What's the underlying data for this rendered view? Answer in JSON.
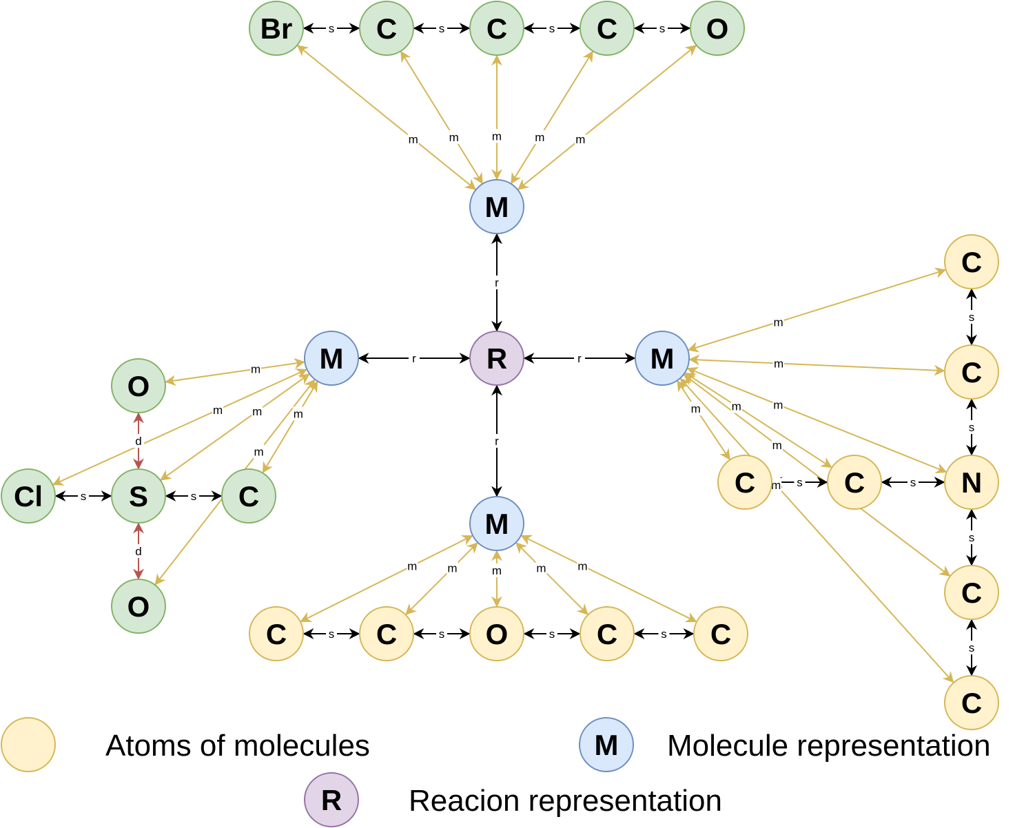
{
  "colors": {
    "atom_a": {
      "fill": "#d5e8d4",
      "stroke": "#82b366"
    },
    "atom_b": {
      "fill": "#fff2cc",
      "stroke": "#d6b656"
    },
    "molecule": {
      "fill": "#dae8fc",
      "stroke": "#6c8ebf"
    },
    "reaction": {
      "fill": "#e1d5e7",
      "stroke": "#9673a6"
    },
    "edge_s": "#000000",
    "edge_r": "#000000",
    "edge_m": "#d6b656",
    "edge_d": "#b85450"
  },
  "nodes": [
    {
      "id": "top_br",
      "label": "Br",
      "kind": "atom_a"
    },
    {
      "id": "top_c1",
      "label": "C",
      "kind": "atom_a"
    },
    {
      "id": "top_c2",
      "label": "C",
      "kind": "atom_a"
    },
    {
      "id": "top_c3",
      "label": "C",
      "kind": "atom_a"
    },
    {
      "id": "top_o",
      "label": "O",
      "kind": "atom_a"
    },
    {
      "id": "m_top",
      "label": "M",
      "kind": "molecule"
    },
    {
      "id": "m_left",
      "label": "M",
      "kind": "molecule"
    },
    {
      "id": "r_center",
      "label": "R",
      "kind": "reaction"
    },
    {
      "id": "m_right",
      "label": "M",
      "kind": "molecule"
    },
    {
      "id": "m_bottom",
      "label": "M",
      "kind": "molecule"
    },
    {
      "id": "l_o_top",
      "label": "O",
      "kind": "atom_a"
    },
    {
      "id": "l_cl",
      "label": "Cl",
      "kind": "atom_a"
    },
    {
      "id": "l_s",
      "label": "S",
      "kind": "atom_a"
    },
    {
      "id": "l_c",
      "label": "C",
      "kind": "atom_a"
    },
    {
      "id": "l_o_bot",
      "label": "O",
      "kind": "atom_a"
    },
    {
      "id": "b_c1",
      "label": "C",
      "kind": "atom_b"
    },
    {
      "id": "b_c2",
      "label": "C",
      "kind": "atom_b"
    },
    {
      "id": "b_o",
      "label": "O",
      "kind": "atom_b"
    },
    {
      "id": "b_c3",
      "label": "C",
      "kind": "atom_b"
    },
    {
      "id": "b_c4",
      "label": "C",
      "kind": "atom_b"
    },
    {
      "id": "r_c1",
      "label": "C",
      "kind": "atom_b"
    },
    {
      "id": "r_c2",
      "label": "C",
      "kind": "atom_b"
    },
    {
      "id": "r_n",
      "label": "N",
      "kind": "atom_b"
    },
    {
      "id": "r_c3",
      "label": "C",
      "kind": "atom_b"
    },
    {
      "id": "r_c4",
      "label": "C",
      "kind": "atom_b"
    },
    {
      "id": "r_c5",
      "label": "C",
      "kind": "atom_b"
    },
    {
      "id": "r_c6",
      "label": "C",
      "kind": "atom_b"
    }
  ],
  "edges": [
    {
      "from": "top_br",
      "to": "top_c1",
      "label": "s",
      "kind": "s"
    },
    {
      "from": "top_c1",
      "to": "top_c2",
      "label": "s",
      "kind": "s"
    },
    {
      "from": "top_c2",
      "to": "top_c3",
      "label": "s",
      "kind": "s"
    },
    {
      "from": "top_c3",
      "to": "top_o",
      "label": "s",
      "kind": "s"
    },
    {
      "from": "m_top",
      "to": "top_br",
      "label": "m",
      "kind": "m"
    },
    {
      "from": "m_top",
      "to": "top_c1",
      "label": "m",
      "kind": "m"
    },
    {
      "from": "m_top",
      "to": "top_c2",
      "label": "m",
      "kind": "m"
    },
    {
      "from": "m_top",
      "to": "top_c3",
      "label": "m",
      "kind": "m"
    },
    {
      "from": "m_top",
      "to": "top_o",
      "label": "m",
      "kind": "m"
    },
    {
      "from": "r_center",
      "to": "m_top",
      "label": "r",
      "kind": "r"
    },
    {
      "from": "r_center",
      "to": "m_left",
      "label": "r",
      "kind": "r"
    },
    {
      "from": "r_center",
      "to": "m_right",
      "label": "r",
      "kind": "r"
    },
    {
      "from": "r_center",
      "to": "m_bottom",
      "label": "r",
      "kind": "r"
    },
    {
      "from": "m_left",
      "to": "l_o_top",
      "label": "m",
      "kind": "m"
    },
    {
      "from": "m_left",
      "to": "l_cl",
      "label": "m",
      "kind": "m"
    },
    {
      "from": "m_left",
      "to": "l_s",
      "label": "m",
      "kind": "m"
    },
    {
      "from": "m_left",
      "to": "l_c",
      "label": "m",
      "kind": "m"
    },
    {
      "from": "m_left",
      "to": "l_o_bot",
      "label": "m",
      "kind": "m"
    },
    {
      "from": "l_cl",
      "to": "l_s",
      "label": "s",
      "kind": "s"
    },
    {
      "from": "l_s",
      "to": "l_c",
      "label": "s",
      "kind": "s"
    },
    {
      "from": "l_s",
      "to": "l_o_top",
      "label": "d",
      "kind": "d"
    },
    {
      "from": "l_s",
      "to": "l_o_bot",
      "label": "d",
      "kind": "d"
    },
    {
      "from": "m_bottom",
      "to": "b_c1",
      "label": "m",
      "kind": "m"
    },
    {
      "from": "m_bottom",
      "to": "b_c2",
      "label": "m",
      "kind": "m"
    },
    {
      "from": "m_bottom",
      "to": "b_o",
      "label": "m",
      "kind": "m"
    },
    {
      "from": "m_bottom",
      "to": "b_c3",
      "label": "m",
      "kind": "m"
    },
    {
      "from": "m_bottom",
      "to": "b_c4",
      "label": "m",
      "kind": "m"
    },
    {
      "from": "b_c1",
      "to": "b_c2",
      "label": "s",
      "kind": "s"
    },
    {
      "from": "b_c2",
      "to": "b_o",
      "label": "s",
      "kind": "s"
    },
    {
      "from": "b_o",
      "to": "b_c3",
      "label": "s",
      "kind": "s"
    },
    {
      "from": "b_c3",
      "to": "b_c4",
      "label": "s",
      "kind": "s"
    },
    {
      "from": "m_right",
      "to": "r_c1",
      "label": "m",
      "kind": "m"
    },
    {
      "from": "m_right",
      "to": "r_c2",
      "label": "m",
      "kind": "m"
    },
    {
      "from": "m_right",
      "to": "r_n",
      "label": "m",
      "kind": "m"
    },
    {
      "from": "m_right",
      "to": "r_c3",
      "label": "m",
      "kind": "m"
    },
    {
      "from": "m_right",
      "to": "r_c4",
      "label": "m",
      "kind": "m"
    },
    {
      "from": "m_right",
      "to": "r_c5",
      "label": "m",
      "kind": "m"
    },
    {
      "from": "m_right",
      "to": "r_c6",
      "label": "m",
      "kind": "m"
    },
    {
      "from": "r_c1",
      "to": "r_c2",
      "label": "s",
      "kind": "s"
    },
    {
      "from": "r_c2",
      "to": "r_n",
      "label": "s",
      "kind": "s"
    },
    {
      "from": "r_n",
      "to": "r_c5",
      "label": "s",
      "kind": "s"
    },
    {
      "from": "r_c5",
      "to": "r_c6",
      "label": "s",
      "kind": "s"
    },
    {
      "from": "r_c3",
      "to": "r_c4",
      "label": "s",
      "kind": "s"
    },
    {
      "from": "r_c4",
      "to": "r_n",
      "label": "s",
      "kind": "s"
    }
  ],
  "legend": {
    "atoms": {
      "symbol": "",
      "text": "Atoms of molecules"
    },
    "molecule": {
      "symbol": "M",
      "text": "Molecule representation"
    },
    "reaction": {
      "symbol": "R",
      "text": "Reacion representation"
    }
  }
}
